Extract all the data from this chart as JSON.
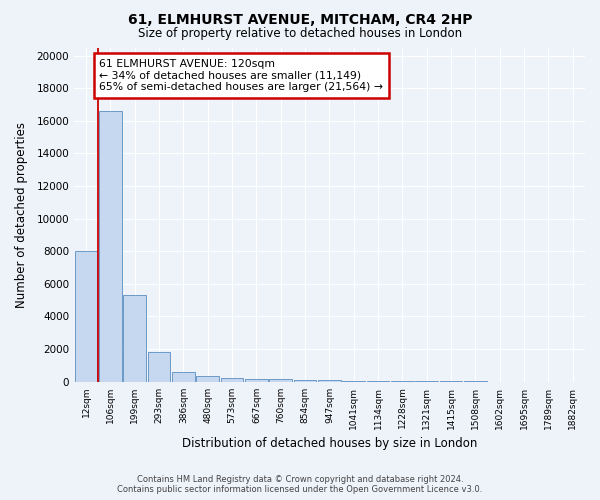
{
  "title_line1": "61, ELMHURST AVENUE, MITCHAM, CR4 2HP",
  "title_line2": "Size of property relative to detached houses in London",
  "xlabel": "Distribution of detached houses by size in London",
  "ylabel": "Number of detached properties",
  "categories": [
    "12sqm",
    "106sqm",
    "199sqm",
    "293sqm",
    "386sqm",
    "480sqm",
    "573sqm",
    "667sqm",
    "760sqm",
    "854sqm",
    "947sqm",
    "1041sqm",
    "1134sqm",
    "1228sqm",
    "1321sqm",
    "1415sqm",
    "1508sqm",
    "1602sqm",
    "1695sqm",
    "1789sqm",
    "1882sqm"
  ],
  "bar_heights": [
    8000,
    16600,
    5300,
    1850,
    620,
    340,
    240,
    190,
    170,
    100,
    80,
    60,
    50,
    40,
    30,
    20,
    15,
    10,
    8,
    5,
    3
  ],
  "bar_color": "#c5d8f0",
  "bar_edge_color": "#5b8dc0",
  "red_line_x": 0.575,
  "annotation_text": "61 ELMHURST AVENUE: 120sqm\n← 34% of detached houses are smaller (11,149)\n65% of semi-detached houses are larger (21,564) →",
  "annotation_box_color": "#ffffff",
  "annotation_border_color": "#cc0000",
  "ylim": [
    0,
    20500
  ],
  "yticks": [
    0,
    2000,
    4000,
    6000,
    8000,
    10000,
    12000,
    14000,
    16000,
    18000,
    20000
  ],
  "footer_line1": "Contains HM Land Registry data © Crown copyright and database right 2024.",
  "footer_line2": "Contains public sector information licensed under the Open Government Licence v3.0.",
  "bg_color": "#eef2f9",
  "grid_color": "#ffffff"
}
